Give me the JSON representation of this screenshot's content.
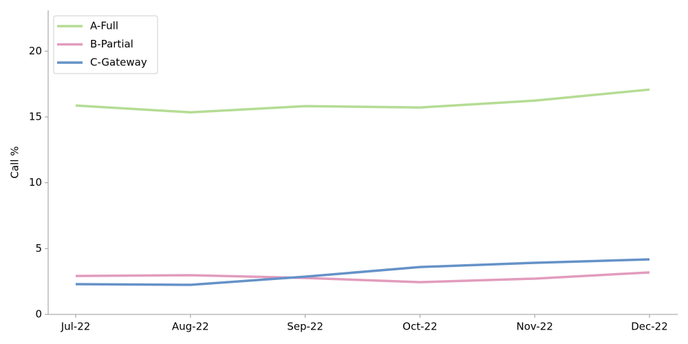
{
  "chart_data": {
    "type": "line",
    "y_label": "Call %",
    "categories": [
      "Jul-22",
      "Aug-22",
      "Sep-22",
      "Oct-22",
      "Nov-22",
      "Dec-22"
    ],
    "series": [
      {
        "name": "A-Full",
        "color": "#b5dc94",
        "values": [
          15.87,
          15.35,
          15.82,
          15.72,
          16.24,
          17.08
        ]
      },
      {
        "name": "B-Partial",
        "color": "#e29cbd",
        "values": [
          2.92,
          2.98,
          2.77,
          2.45,
          2.72,
          3.19
        ]
      },
      {
        "name": "C-Gateway",
        "color": "#6592c8",
        "values": [
          2.3,
          2.25,
          2.87,
          3.6,
          3.92,
          4.18
        ]
      }
    ],
    "ylim": [
      0,
      23.1
    ],
    "yticks": [
      0,
      5,
      10,
      15,
      20
    ],
    "grid": false,
    "legend": "upper-left"
  }
}
